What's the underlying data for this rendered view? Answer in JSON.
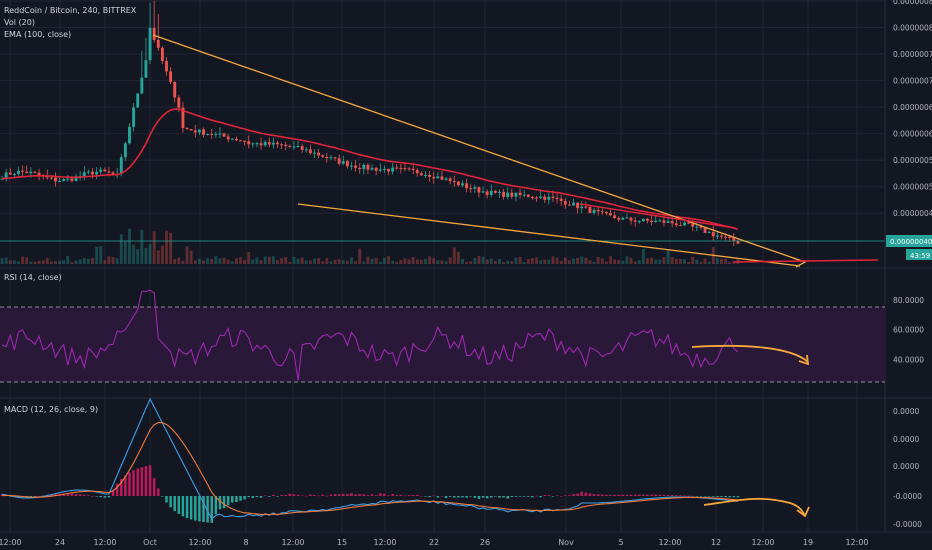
{
  "header": {
    "symbol": "ReddCoin / Bitcoin, 240, BITTREX",
    "volume": "Vol (20)",
    "ema": "EMA (100, close)",
    "rsi": "RSI (14, close)",
    "macd": "MACD (12, 26, close, 9)"
  },
  "colors": {
    "background": "#131722",
    "grid": "#1f2533",
    "up": "#26a69a",
    "down": "#ef5350",
    "ema": "#e0243b",
    "trendline": "#f7a83a",
    "rsi_line": "#9c27b0",
    "rsi_band": "#2a1838",
    "macd_line": "#3aa0e8",
    "signal_line": "#f07a3a",
    "hist_up": "#26a69a",
    "hist_down": "#c2185b"
  },
  "chart_data": [
    {
      "type": "candlestick",
      "title": "ReddCoin / Bitcoin, 240, BITTREX",
      "y_ticks": [
        "0.00000085",
        "0.00000080",
        "0.00000075",
        "0.00000070",
        "0.00000065",
        "0.00000060",
        "0.00000055",
        "0.00000050",
        "0.00000045"
      ],
      "ylim": [
        3.6e-07,
        8.5e-07
      ],
      "last_price_label": "0.00000040",
      "countdown_label": "43:59",
      "x_ticks": [
        "12:00",
        "24",
        "12:00",
        "Oct",
        "12:00",
        "8",
        "12:00",
        "15",
        "12:00",
        "22",
        "26",
        "Nov",
        "5",
        "12:00",
        "12",
        "12:00",
        "19",
        "12:00"
      ],
      "key_values": {
        "start": 5.2e-07,
        "peak": 8e-07,
        "end": 4e-07
      },
      "ema_period": 100,
      "grid": true
    },
    {
      "type": "line",
      "title": "RSI (14, close)",
      "y_ticks": [
        "80.0000",
        "60.0000",
        "40.0000"
      ],
      "ylim": [
        18,
        92
      ],
      "overbought": 70,
      "oversold": 30,
      "key_values": {
        "peak": 88,
        "low": 26,
        "last": 45
      }
    },
    {
      "type": "line",
      "title": "MACD (12, 26, close, 9)",
      "y_ticks": [
        "0.0000",
        "0.0000",
        "0.0000",
        "-0.0000",
        "-0.0000"
      ],
      "series_names": [
        "MACD",
        "Signal",
        "Histogram"
      ]
    }
  ]
}
